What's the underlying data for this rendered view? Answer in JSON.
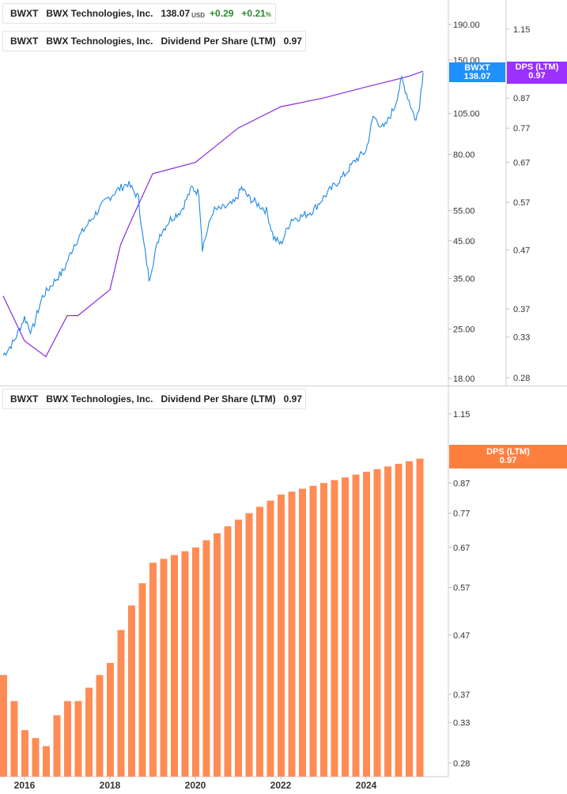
{
  "legend_top": {
    "ticker": "BWXT",
    "company": "BWX Technologies, Inc.",
    "price": "138.07",
    "currency": "USD",
    "change": "+0.29",
    "change_pct": "+0.21",
    "pct_symbol": "%"
  },
  "legend_dps_top": {
    "ticker": "BWXT",
    "company": "BWX Technologies, Inc.",
    "metric": "Dividend Per Share (LTM)",
    "value": "0.97"
  },
  "legend_dps_bottom": {
    "ticker": "BWXT",
    "company": "BWX Technologies, Inc.",
    "metric": "Dividend Per Share (LTM)",
    "value": "0.97"
  },
  "price_tag": {
    "ticker": "BWXT",
    "value": "138.07"
  },
  "dps_tag_top": {
    "label": "DPS (LTM)",
    "value": "0.97"
  },
  "dps_tag_bottom": {
    "label": "DPS (LTM)",
    "value": "0.97"
  },
  "colors": {
    "price_line": "#1e88e5",
    "dps_line": "#8a2be2",
    "dps_bar": "#ff8c55",
    "price_tag": "#1e90ff",
    "dps_tag_top": "#9b30ff",
    "dps_tag_bottom": "#ff7f3f",
    "positive": "#2a8a2a"
  },
  "chart_data": [
    {
      "type": "line",
      "scale": "log",
      "x_range": [
        "2015-07",
        "2025-05"
      ],
      "price_axis_ticks": [
        190,
        150,
        105,
        80,
        55,
        45,
        35,
        25,
        18
      ],
      "price_axis_tick_labels": [
        "190.00",
        "150.00",
        "105.00",
        "80.00",
        "55.00",
        "45.00",
        "35.00",
        "25.00",
        "18.00"
      ],
      "dps_axis_ticks": [
        1.15,
        0.87,
        0.77,
        0.67,
        0.57,
        0.47,
        0.37,
        0.33,
        0.28
      ],
      "series": [
        {
          "name": "BWXT",
          "axis": "left",
          "points": [
            [
              "2015-07",
              21
            ],
            [
              "2015-10",
              23
            ],
            [
              "2016-01",
              27
            ],
            [
              "2016-03",
              24.5
            ],
            [
              "2016-06",
              31
            ],
            [
              "2016-09",
              34
            ],
            [
              "2016-12",
              37
            ],
            [
              "2017-03",
              44
            ],
            [
              "2017-06",
              49
            ],
            [
              "2017-09",
              54
            ],
            [
              "2017-12",
              59
            ],
            [
              "2018-03",
              63
            ],
            [
              "2018-06",
              66
            ],
            [
              "2018-09",
              60
            ],
            [
              "2018-10",
              48
            ],
            [
              "2018-12",
              35
            ],
            [
              "2019-03",
              47
            ],
            [
              "2019-06",
              52
            ],
            [
              "2019-09",
              55
            ],
            [
              "2019-12",
              64
            ],
            [
              "2020-02",
              62
            ],
            [
              "2020-03",
              43
            ],
            [
              "2020-06",
              55
            ],
            [
              "2020-09",
              56
            ],
            [
              "2020-12",
              58
            ],
            [
              "2021-02",
              64
            ],
            [
              "2021-04",
              60
            ],
            [
              "2021-06",
              58
            ],
            [
              "2021-09",
              55
            ],
            [
              "2021-11",
              46
            ],
            [
              "2022-01",
              44
            ],
            [
              "2022-04",
              52
            ],
            [
              "2022-07",
              53
            ],
            [
              "2022-10",
              55
            ],
            [
              "2023-01",
              60
            ],
            [
              "2023-04",
              65
            ],
            [
              "2023-07",
              70
            ],
            [
              "2023-10",
              77
            ],
            [
              "2024-01",
              82
            ],
            [
              "2024-03",
              103
            ],
            [
              "2024-06",
              95
            ],
            [
              "2024-09",
              110
            ],
            [
              "2024-11",
              132
            ],
            [
              "2025-01",
              115
            ],
            [
              "2025-03",
              100
            ],
            [
              "2025-04",
              112
            ],
            [
              "2025-05",
              138.07
            ]
          ]
        },
        {
          "name": "DPS (LTM)",
          "axis": "right",
          "points": [
            [
              "2015-07",
              0.39
            ],
            [
              "2016-01",
              0.325
            ],
            [
              "2016-07",
              0.305
            ],
            [
              "2017-01",
              0.36
            ],
            [
              "2017-04",
              0.36
            ],
            [
              "2018-01",
              0.4
            ],
            [
              "2018-04",
              0.48
            ],
            [
              "2018-07",
              0.53
            ],
            [
              "2019-01",
              0.64
            ],
            [
              "2020-01",
              0.67
            ],
            [
              "2021-01",
              0.77
            ],
            [
              "2022-01",
              0.84
            ],
            [
              "2023-01",
              0.87
            ],
            [
              "2024-01",
              0.91
            ],
            [
              "2025-01",
              0.95
            ],
            [
              "2025-05",
              0.97
            ]
          ]
        }
      ]
    },
    {
      "type": "bar",
      "scale": "log",
      "x_tick_labels": [
        "2016",
        "2018",
        "2020",
        "2022",
        "2024"
      ],
      "y_axis_ticks": [
        1.15,
        0.87,
        0.77,
        0.67,
        0.57,
        0.47,
        0.37,
        0.33,
        0.28
      ],
      "series": [
        {
          "name": "DPS (LTM)",
          "categories": [
            "2015-Q3",
            "2015-Q4",
            "2016-Q1",
            "2016-Q2",
            "2016-Q3",
            "2016-Q4",
            "2017-Q1",
            "2017-Q2",
            "2017-Q3",
            "2017-Q4",
            "2018-Q1",
            "2018-Q2",
            "2018-Q3",
            "2018-Q4",
            "2019-Q1",
            "2019-Q2",
            "2019-Q3",
            "2019-Q4",
            "2020-Q1",
            "2020-Q2",
            "2020-Q3",
            "2020-Q4",
            "2021-Q1",
            "2021-Q2",
            "2021-Q3",
            "2021-Q4",
            "2022-Q1",
            "2022-Q2",
            "2022-Q3",
            "2022-Q4",
            "2023-Q1",
            "2023-Q2",
            "2023-Q3",
            "2023-Q4",
            "2024-Q1",
            "2024-Q2",
            "2024-Q3",
            "2024-Q4",
            "2025-Q1",
            "2025-Q2"
          ],
          "values": [
            0.4,
            0.36,
            0.32,
            0.31,
            0.3,
            0.34,
            0.36,
            0.36,
            0.38,
            0.4,
            0.42,
            0.48,
            0.53,
            0.58,
            0.63,
            0.64,
            0.65,
            0.66,
            0.67,
            0.69,
            0.71,
            0.73,
            0.75,
            0.77,
            0.79,
            0.81,
            0.83,
            0.84,
            0.85,
            0.86,
            0.87,
            0.88,
            0.89,
            0.9,
            0.91,
            0.92,
            0.93,
            0.94,
            0.95,
            0.96
          ]
        }
      ]
    }
  ]
}
